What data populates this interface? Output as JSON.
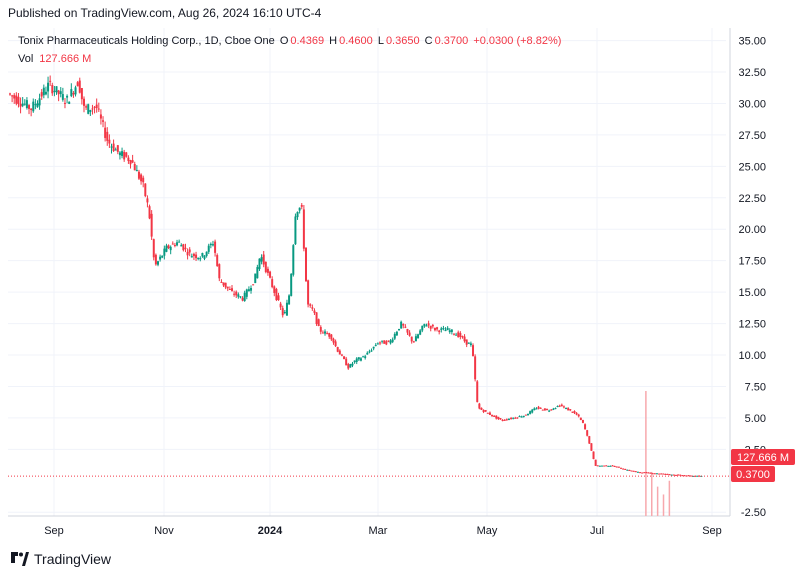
{
  "header": {
    "published": "Published on TradingView.com, Aug 26, 2024 16:10 UTC-4"
  },
  "legend": {
    "symbol": "Tonix Pharmaceuticals Holding Corp., 1D, Cboe One",
    "o_label": "O",
    "o_value": "0.4369",
    "h_label": "H",
    "h_value": "0.4600",
    "l_label": "L",
    "l_value": "0.3650",
    "c_label": "C",
    "c_value": "0.3700",
    "change": "+0.0300 (+8.82%)",
    "vol_label": "Vol",
    "vol_value": "127.666 M"
  },
  "footer": {
    "brand": "TradingView"
  },
  "colors": {
    "up": "#089981",
    "down": "#f23645",
    "grid": "#f0f3fa",
    "text": "#131722",
    "volume": "#f7a8ad"
  },
  "chart_data": {
    "type": "candlestick",
    "title": "Tonix Pharmaceuticals Holding Corp., 1D, Cboe One",
    "xlabel": "",
    "ylabel": "",
    "x_ticks": [
      "Sep",
      "Nov",
      "2024",
      "Mar",
      "May",
      "Jul",
      "Sep"
    ],
    "y_ticks": [
      35.0,
      32.5,
      30.0,
      27.5,
      25.0,
      22.5,
      20.0,
      17.5,
      15.0,
      12.5,
      10.0,
      7.5,
      5.0,
      2.5,
      -2.5
    ],
    "ylim": [
      -2.8,
      36.0
    ],
    "grid": true,
    "last_price": 0.37,
    "price_badge": "0.3700",
    "volume_badge": "127.666 M",
    "path_points": [
      [
        0,
        30.8
      ],
      [
        4,
        29.6
      ],
      [
        7,
        31.5
      ],
      [
        10,
        30.2
      ],
      [
        12,
        31.8
      ],
      [
        13,
        29.5
      ],
      [
        15,
        29.8
      ],
      [
        17,
        27.0
      ],
      [
        19,
        26.0
      ],
      [
        21,
        25.5
      ],
      [
        23,
        23.5
      ],
      [
        24,
        21.5
      ],
      [
        25,
        17.0
      ],
      [
        27,
        18.5
      ],
      [
        29,
        19.0
      ],
      [
        31,
        18.0
      ],
      [
        33,
        17.8
      ],
      [
        35,
        19.0
      ],
      [
        36,
        16.0
      ],
      [
        38,
        15.0
      ],
      [
        40,
        14.5
      ],
      [
        42,
        16.0
      ],
      [
        43,
        18.0
      ],
      [
        45,
        15.5
      ],
      [
        47,
        13.0
      ],
      [
        48,
        15.0
      ],
      [
        49,
        21.5
      ],
      [
        50,
        21.8
      ],
      [
        51,
        14.0
      ],
      [
        52,
        13.5
      ],
      [
        53,
        12.0
      ],
      [
        55,
        11.5
      ],
      [
        56,
        10.5
      ],
      [
        58,
        9.0
      ],
      [
        59,
        9.5
      ],
      [
        61,
        10.0
      ],
      [
        63,
        11.0
      ],
      [
        65,
        11.0
      ],
      [
        67,
        12.5
      ],
      [
        69,
        11.0
      ],
      [
        71,
        12.5
      ],
      [
        73,
        12.0
      ],
      [
        75,
        12.0
      ],
      [
        77,
        11.5
      ],
      [
        78,
        11.0
      ],
      [
        79,
        10.8
      ],
      [
        80,
        5.8
      ],
      [
        82,
        5.3
      ],
      [
        84,
        4.8
      ],
      [
        86,
        5.0
      ],
      [
        88,
        5.2
      ],
      [
        90,
        5.8
      ],
      [
        92,
        5.6
      ],
      [
        94,
        6.0
      ],
      [
        96,
        5.5
      ],
      [
        97,
        5.2
      ],
      [
        98,
        4.5
      ],
      [
        99,
        3.0
      ],
      [
        100,
        1.2
      ],
      [
        103,
        1.2
      ],
      [
        105,
        0.9
      ],
      [
        107,
        0.7
      ],
      [
        110,
        0.6
      ],
      [
        113,
        0.5
      ],
      [
        116,
        0.4
      ],
      [
        118,
        0.37
      ]
    ],
    "volume_spikes": [
      {
        "x": 111,
        "v": 127.666
      },
      {
        "x": 112,
        "v": 45
      },
      {
        "x": 113,
        "v": 30
      },
      {
        "x": 114,
        "v": 22
      },
      {
        "x": 115,
        "v": 36
      }
    ]
  }
}
